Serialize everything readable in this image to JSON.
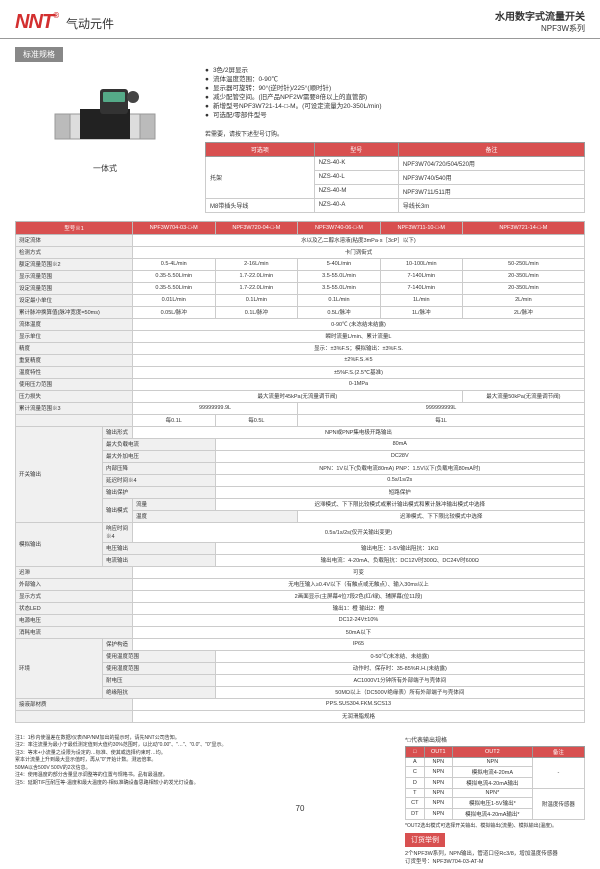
{
  "header": {
    "logo": "NNT",
    "logoSup": "®",
    "category": "气动元件",
    "titleMain": "水用数字式流量开关",
    "titleSub": "NPF3W系列"
  },
  "badge": "标准规格",
  "prodLabel": "一体式",
  "bullets": [
    "3色/2屏显示",
    "流体温度范围：0-90℃",
    "显示器可旋转：90°(逆时针)/225°(顺时针)",
    "减少配管空间。(旧产品NPF2W需要8倍以上的直管部)",
    "新增型号NPF3W721-14-□-M。(可设定流量为20-350L/min)",
    "可选配/零部件型号"
  ],
  "optNote": "若需要，请按下述型号订购。",
  "optHead": [
    "可选项",
    "型号",
    "备注"
  ],
  "optRows": [
    [
      "托架",
      "NZS-40-K",
      "NPF3W704/720/504/520用"
    ],
    [
      "",
      "NZS-40-L",
      "NPF3W740/540用"
    ],
    [
      "",
      "NZS-40-M",
      "NPF3W711/511用"
    ],
    [
      "M8带插头导线",
      "NZS-40-A",
      "导线长3m"
    ]
  ],
  "mainHead": [
    "型号※1",
    "NPF3W704-03-□-M",
    "NPF3W720-04-□-M",
    "NPF3W740-06-□-M",
    "NPF3W711-10-□-M",
    "NPF3W721-14-□-M"
  ],
  "mainRows": [
    {
      "l": "测定流体",
      "c": [
        "水以及乙二醇水溶液(粘度3mPa·s［3cP］以下)"
      ],
      "s": 5
    },
    {
      "l": "检测方式",
      "c": [
        "卡门涡街式"
      ],
      "s": 5
    },
    {
      "l": "额定流量范围※2",
      "c": [
        "0.5-4L/min",
        "2-16L/min",
        "5-40L/min",
        "10-100L/min",
        "50-250L/min"
      ]
    },
    {
      "l": "显示流量范围",
      "c": [
        "0.35-5.50L/min",
        "1.7-22.0L/min",
        "3.5-55.0L/min",
        "7-140L/min",
        "20-350L/min"
      ]
    },
    {
      "l": "设定流量范围",
      "c": [
        "0.35-5.50L/min",
        "1.7-22.0L/min",
        "3.5-55.0L/min",
        "7-140L/min",
        "20-350L/min"
      ]
    },
    {
      "l": "设定最小单位",
      "c": [
        "0.01L/min",
        "0.1L/min",
        "0.1L/min",
        "1L/min",
        "2L/min"
      ]
    },
    {
      "l": "累计脉冲换算值(脉冲宽度=50ms)",
      "c": [
        "0.05L/脉冲",
        "0.1L/脉冲",
        "0.5L/脉冲",
        "1L/脉冲",
        "2L/脉冲"
      ]
    },
    {
      "l": "流体温度",
      "c": [
        "0-90℃ (未冻结未结露)"
      ],
      "s": 5
    },
    {
      "l": "显示单位",
      "c": [
        "瞬时流量L/min、累计流量L"
      ],
      "s": 5
    },
    {
      "l": "精度",
      "c": [
        "显示：±3%F.S；模拟输出：±3%F.S."
      ],
      "s": 5
    },
    {
      "l": "重复精度",
      "c": [
        "±2%F.S.※5"
      ],
      "s": 5
    },
    {
      "l": "温度特性",
      "c": [
        "±5%F.S.(2.5℃基准)"
      ],
      "s": 5
    },
    {
      "l": "使用压力范围",
      "c": [
        "0-1MPa"
      ],
      "s": 5
    },
    {
      "l": "压力损失",
      "c": [
        "最大流量时45kPa(无流量调节阀)",
        "最大流量50kPa(无流量调节阀)"
      ],
      "s": [
        4,
        1
      ]
    },
    {
      "l": "累计流量范围※3",
      "c": [
        "99999999.9L",
        "999999999L"
      ],
      "s": [
        2,
        3
      ]
    },
    {
      "l": "",
      "c": [
        "每0.1L",
        "每0.5L",
        "每1L"
      ],
      "s": [
        1,
        1,
        3
      ]
    },
    {
      "l": "开关输出",
      "sub": [
        {
          "l": "输出形式",
          "c": [
            "NPN或PNP集电极开路输出"
          ],
          "s": 5
        },
        {
          "l": "最大负载电流",
          "c": [
            "80mA"
          ],
          "s": 5
        },
        {
          "l": "最大外加电压",
          "c": [
            "DC28V"
          ],
          "s": 5
        },
        {
          "l": "内部压降",
          "c": [
            "NPN：1V以下(负载电流80mA) PNP：1.5V以下(负载电流80mA时)"
          ],
          "s": 5
        },
        {
          "l": "延迟时间※4",
          "c": [
            "0.5s/1s/2s"
          ],
          "s": 5
        },
        {
          "l": "输出保护",
          "c": [
            "短路保护"
          ],
          "s": 5
        },
        {
          "l2": "输出模式",
          "l": "流量",
          "c": [
            "迟滞模式、下下限比较模式或累计输出模式和累计脉冲输出模式中选择"
          ],
          "s": 5
        },
        {
          "l": "温度",
          "c": [
            "迟滞模式、下下限比较模式中选择"
          ],
          "s": 5
        }
      ]
    },
    {
      "l": "模拟输出",
      "sub": [
        {
          "l": "响应时间※4",
          "c": [
            "0.5s/1s/2s(仅开关输出变更)"
          ],
          "s": 5
        },
        {
          "l": "电压输出",
          "c": [
            "输出电压：1-5V输出阻抗：1KΩ"
          ],
          "s": 5
        },
        {
          "l": "电流输出",
          "c": [
            "输出电流：4-20mA、负载阻抗：DC12V时300Ω、DC24V时600Ω"
          ],
          "s": 5
        }
      ]
    },
    {
      "l": "迟滞",
      "c": [
        "可变"
      ],
      "s": 5
    },
    {
      "l": "外部输入",
      "c": [
        "无电压输入≥0.4V以下（有触点或无触点）、输入30ms以上"
      ],
      "s": 5
    },
    {
      "l": "显示方式",
      "c": [
        "2画面显示(主屏幕4位7段2色(红/绿)、辅屏幕(位11段)"
      ],
      "s": 5
    },
    {
      "l": "状态LED",
      "c": [
        "输出1：橙 输出2：橙"
      ],
      "s": 5
    },
    {
      "l": "电源电压",
      "c": [
        "DC12-24V±10%"
      ],
      "s": 5
    },
    {
      "l": "消耗电流",
      "c": [
        "50mA以下"
      ],
      "s": 5
    },
    {
      "l": "环境",
      "sub": [
        {
          "l": "保护构造",
          "c": [
            "IP65"
          ],
          "s": 5
        },
        {
          "l": "使用温度范围",
          "c": [
            "0-50℃(未冻结、未结露)"
          ],
          "s": 5
        },
        {
          "l": "使用湿度范围",
          "c": [
            "动作时、保存时：35-85%R.H.(未结露)"
          ],
          "s": 5
        },
        {
          "l": "耐电压",
          "c": [
            "AC1000V1分钟所有外部端子与壳体间"
          ],
          "s": 5
        },
        {
          "l": "绝缘阻抗",
          "c": [
            "50MΩ以上（DC500V绝缘表）所有外部端子与壳体间"
          ],
          "s": 5
        }
      ]
    },
    {
      "l": "接液部材质",
      "c": [
        "PPS.SUS304.FKM.SCS13"
      ],
      "s": 5
    },
    {
      "l": "",
      "c": [
        "无润滑脂规格"
      ],
      "s": 5
    }
  ],
  "notes": [
    "注1：1秒内使温差在数据/仪表/NP/NM加出的提示时，请先NNT公司告知。",
    "注2：率注流量为最小于最低测定值到大值约30%范围时，以比动\"0.00\"、\"…\"、\"0.0\"、\"0\"显示。",
    "注3：等末+小流量之设限为设定的…标准、使其或选择约束时…均。",
    "    累本计流量上升到最大显示值时，再从\"0\"开始计数。测远倍率。",
    "    50MA以含500V 500V的2次信息。",
    "注4：使用温度的部分含量显示调整等的位置与规格书。品有最温度。",
    "注5：延期T/F压耐压等-温度和最大温度的-相似准确设备思路相较小的发光灯设备。"
  ],
  "outNote": "*□代表输出规格",
  "outHead": [
    "□",
    "OUT1",
    "OUT2",
    "备注"
  ],
  "outRows": [
    [
      "A",
      "NPN",
      "NPN",
      ""
    ],
    [
      "C",
      "NPN",
      "模拟电流4-20mA",
      "-"
    ],
    [
      "D",
      "NPN",
      "模拟电流4-20mA输出",
      ""
    ],
    [
      "T",
      "NPN",
      "NPN*",
      ""
    ],
    [
      "CT",
      "NPN",
      "模拟电压1-5V输出*",
      "附温度传感器"
    ],
    [
      "DT",
      "NPN",
      "模拟电流4-20mA输出*",
      ""
    ]
  ],
  "outFoot": "*OUT2选出模式可选择开关输出、模拟输出(流量)、模拟输出(温度)。",
  "orderBadge": "订货举例",
  "orderTxt": [
    "2个NPF3W系列，NPN输出，管道口径Rc3/8，增加温度传感器",
    "订货型号：NPF3W704-03-AT-M"
  ],
  "pageNum": "70"
}
